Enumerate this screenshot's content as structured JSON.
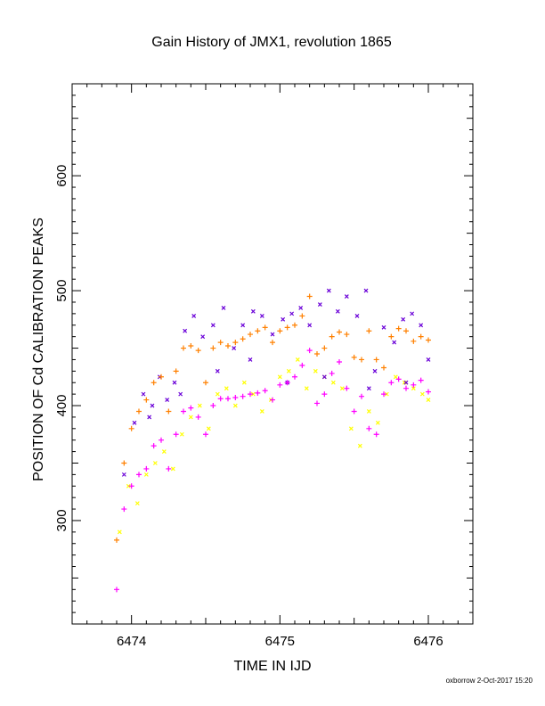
{
  "chart_data": {
    "type": "scatter",
    "title": "Gain History of JMX1, revolution 1865",
    "xlabel": "TIME IN IJD",
    "ylabel": "POSITION OF Cd CALIBRATION PEAKS",
    "xlim": [
      6473.6,
      6476.3
    ],
    "ylim": [
      210,
      680
    ],
    "xticks": [
      6474,
      6475,
      6476
    ],
    "yticks": [
      300,
      400,
      500,
      600
    ],
    "grid": false,
    "series": [
      {
        "marker": "+",
        "color": "#ff8000",
        "x": [
          6473.9,
          6473.95,
          6474.0,
          6474.05,
          6474.1,
          6474.15,
          6474.2,
          6474.25,
          6474.3,
          6474.35,
          6474.4,
          6474.45,
          6474.5,
          6474.55,
          6474.6,
          6474.65,
          6474.7,
          6474.75,
          6474.8,
          6474.85,
          6474.9,
          6474.95,
          6475.0,
          6475.05,
          6475.1,
          6475.15,
          6475.2,
          6475.25,
          6475.3,
          6475.35,
          6475.4,
          6475.45,
          6475.5,
          6475.55,
          6475.6,
          6475.65,
          6475.7,
          6475.75,
          6475.8,
          6475.85,
          6475.9,
          6475.95,
          6476.0
        ],
        "y": [
          283,
          350,
          380,
          395,
          405,
          420,
          425,
          395,
          430,
          450,
          452,
          448,
          420,
          450,
          455,
          452,
          455,
          458,
          462,
          465,
          468,
          455,
          465,
          468,
          470,
          478,
          495,
          445,
          450,
          460,
          464,
          462,
          442,
          440,
          465,
          440,
          433,
          460,
          467,
          465,
          456,
          460,
          457
        ]
      },
      {
        "marker": "+",
        "color": "#ff00ff",
        "x": [
          6473.9,
          6473.95,
          6474.0,
          6474.05,
          6474.1,
          6474.15,
          6474.2,
          6474.25,
          6474.3,
          6474.35,
          6474.4,
          6474.45,
          6474.5,
          6474.55,
          6474.6,
          6474.65,
          6474.7,
          6474.75,
          6474.8,
          6474.85,
          6474.9,
          6474.95,
          6475.0,
          6475.05,
          6475.1,
          6475.15,
          6475.2,
          6475.25,
          6475.3,
          6475.35,
          6475.4,
          6475.45,
          6475.5,
          6475.55,
          6475.6,
          6475.65,
          6475.7,
          6475.75,
          6475.8,
          6475.85,
          6475.9,
          6475.95,
          6476.0
        ],
        "y": [
          240,
          310,
          330,
          340,
          345,
          365,
          370,
          345,
          375,
          395,
          398,
          390,
          375,
          400,
          406,
          406,
          407,
          408,
          410,
          411,
          413,
          405,
          418,
          420,
          425,
          435,
          448,
          402,
          410,
          428,
          438,
          415,
          395,
          408,
          380,
          375,
          410,
          420,
          423,
          415,
          418,
          422,
          412
        ]
      },
      {
        "marker": "x",
        "color": "#6a00d8",
        "x": [
          6473.95,
          6474.02,
          6474.08,
          6474.14,
          6474.19,
          6474.24,
          6474.29,
          6474.36,
          6474.42,
          6474.48,
          6474.55,
          6474.62,
          6474.69,
          6474.75,
          6474.82,
          6474.88,
          6474.95,
          6475.02,
          6475.08,
          6475.14,
          6475.2,
          6475.27,
          6475.33,
          6475.39,
          6475.45,
          6475.52,
          6475.58,
          6475.64,
          6475.7,
          6475.77,
          6475.83,
          6475.89,
          6475.95,
          6476.0,
          6474.12,
          6474.33,
          6474.58,
          6474.8,
          6475.05,
          6475.3,
          6475.6,
          6475.85
        ],
        "y": [
          340,
          385,
          410,
          400,
          425,
          405,
          420,
          465,
          478,
          460,
          470,
          485,
          450,
          470,
          482,
          478,
          462,
          475,
          480,
          485,
          470,
          488,
          500,
          482,
          495,
          478,
          500,
          430,
          468,
          455,
          475,
          480,
          470,
          440,
          390,
          410,
          430,
          440,
          420,
          425,
          415,
          420
        ]
      },
      {
        "marker": "x",
        "color": "#ffff00",
        "x": [
          6473.92,
          6473.98,
          6474.04,
          6474.1,
          6474.16,
          6474.22,
          6474.28,
          6474.34,
          6474.4,
          6474.46,
          6474.52,
          6474.58,
          6474.64,
          6474.7,
          6474.76,
          6474.82,
          6474.88,
          6474.94,
          6475.0,
          6475.06,
          6475.12,
          6475.18,
          6475.24,
          6475.3,
          6475.36,
          6475.42,
          6475.48,
          6475.54,
          6475.6,
          6475.66,
          6475.72,
          6475.78,
          6475.84,
          6475.9,
          6475.96,
          6476.0
        ],
        "y": [
          290,
          330,
          315,
          340,
          350,
          360,
          345,
          375,
          390,
          400,
          380,
          410,
          415,
          400,
          420,
          410,
          395,
          405,
          425,
          430,
          440,
          415,
          430,
          425,
          420,
          415,
          380,
          365,
          395,
          385,
          410,
          425,
          420,
          415,
          410,
          405
        ]
      }
    ]
  },
  "footer": {
    "credit": "oxborrow  2-Oct-2017 15:20"
  }
}
